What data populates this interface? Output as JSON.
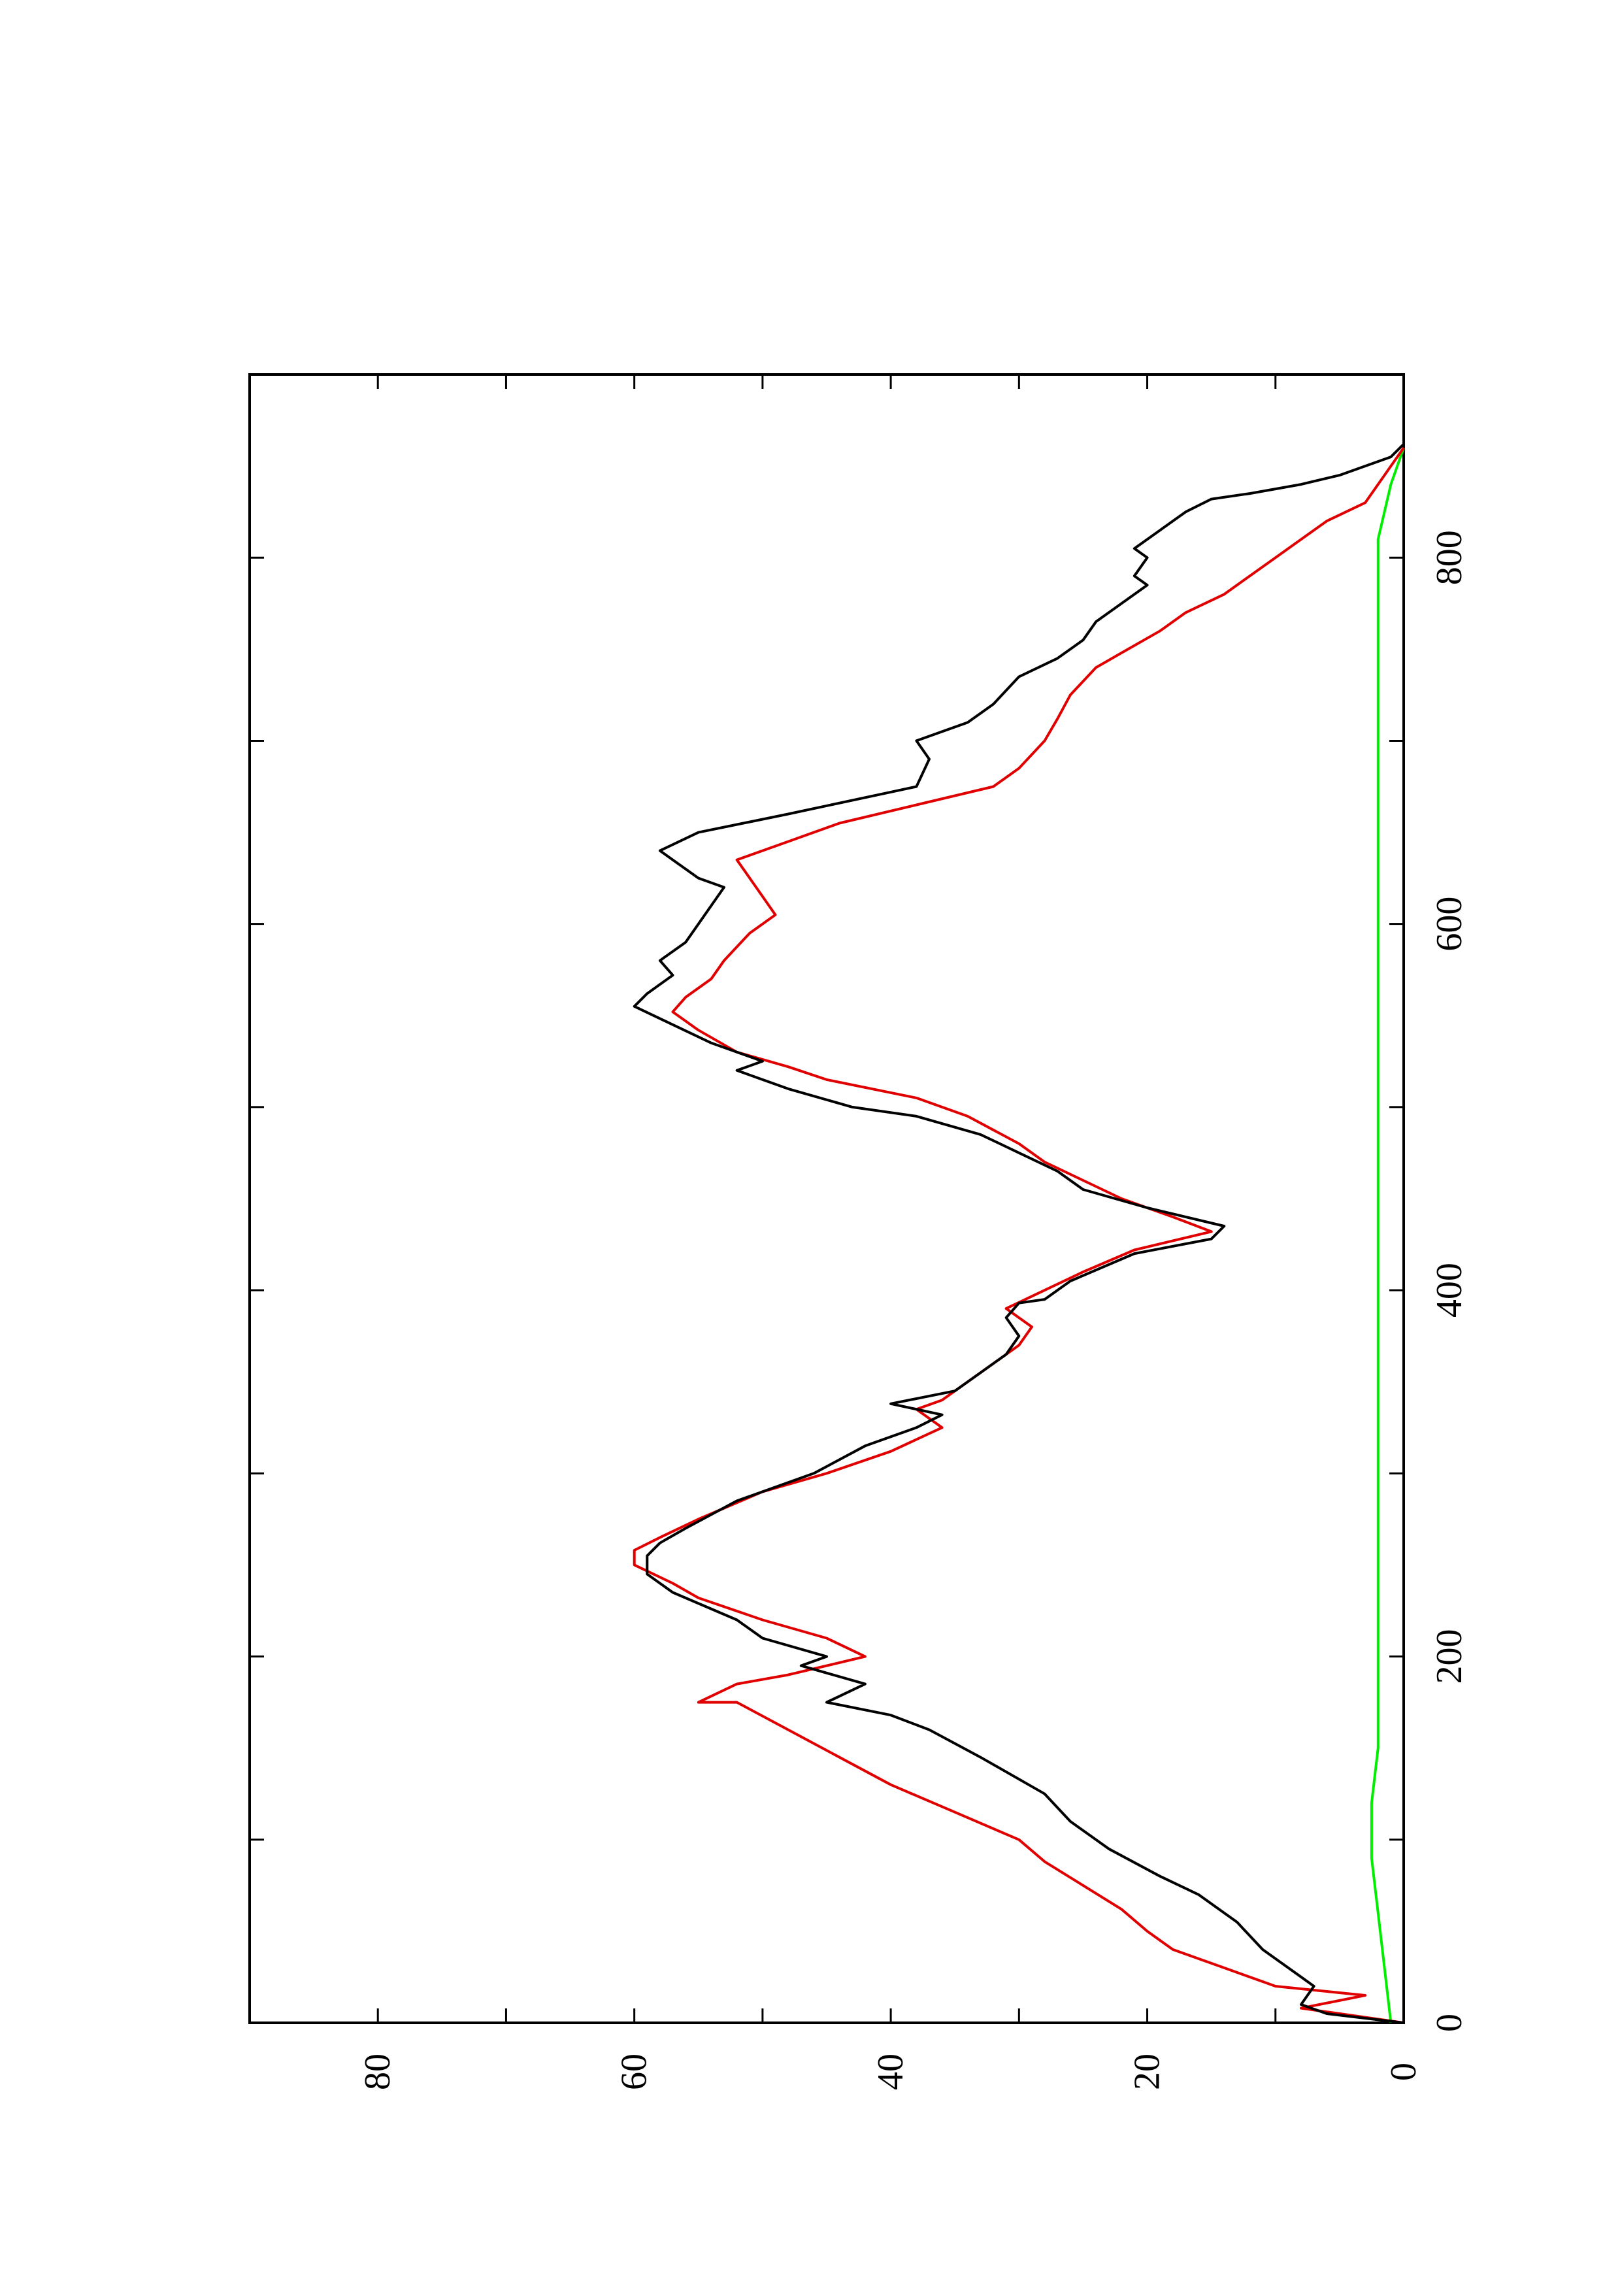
{
  "chart_data": {
    "type": "line",
    "orientation": "rotated 90° counter-clockwise (landscape plot printed on portrait page)",
    "title": "",
    "xlabel": "",
    "ylabel": "",
    "xlim": [
      0,
      900
    ],
    "ylim": [
      0,
      90
    ],
    "x_ticks": [
      0,
      200,
      400,
      600,
      800
    ],
    "x_tick_labels": [
      "0",
      "200",
      "400",
      "600",
      "800"
    ],
    "x_minor_ticks": [
      100,
      300,
      500,
      700
    ],
    "y_ticks": [
      0,
      20,
      40,
      60,
      80
    ],
    "y_tick_labels": [
      "0",
      "20",
      "40",
      "60",
      "80"
    ],
    "y_minor_ticks": [
      10,
      30,
      50,
      70
    ],
    "grid": false,
    "legend": false,
    "colors": {
      "black": "#000000",
      "red": "#e00000",
      "green": "#00ee00",
      "frame": "#000000"
    },
    "series": [
      {
        "color": "#000000",
        "points": [
          [
            0,
            0
          ],
          [
            5,
            6
          ],
          [
            10,
            8
          ],
          [
            20,
            7
          ],
          [
            25,
            8
          ],
          [
            30,
            9
          ],
          [
            40,
            11
          ],
          [
            55,
            13
          ],
          [
            70,
            16
          ],
          [
            80,
            19
          ],
          [
            95,
            23
          ],
          [
            110,
            26
          ],
          [
            125,
            28
          ],
          [
            145,
            33
          ],
          [
            160,
            37
          ],
          [
            168,
            40
          ],
          [
            175,
            45
          ],
          [
            185,
            42
          ],
          [
            195,
            47
          ],
          [
            200,
            45
          ],
          [
            210,
            50
          ],
          [
            220,
            52
          ],
          [
            235,
            57
          ],
          [
            245,
            59
          ],
          [
            255,
            59
          ],
          [
            262,
            58
          ],
          [
            270,
            56
          ],
          [
            285,
            52
          ],
          [
            300,
            46
          ],
          [
            315,
            42
          ],
          [
            325,
            38
          ],
          [
            332,
            36
          ],
          [
            338,
            40
          ],
          [
            345,
            35
          ],
          [
            355,
            33
          ],
          [
            365,
            31
          ],
          [
            375,
            30
          ],
          [
            385,
            31
          ],
          [
            393,
            30
          ],
          [
            395,
            28
          ],
          [
            405,
            26
          ],
          [
            420,
            21
          ],
          [
            428,
            15
          ],
          [
            435,
            14
          ],
          [
            445,
            20
          ],
          [
            455,
            25
          ],
          [
            465,
            27
          ],
          [
            475,
            30
          ],
          [
            485,
            33
          ],
          [
            495,
            38
          ],
          [
            500,
            43
          ],
          [
            510,
            48
          ],
          [
            520,
            52
          ],
          [
            525,
            50
          ],
          [
            535,
            54
          ],
          [
            545,
            57
          ],
          [
            555,
            60
          ],
          [
            562,
            59
          ],
          [
            572,
            57
          ],
          [
            580,
            58
          ],
          [
            590,
            56
          ],
          [
            600,
            55
          ],
          [
            610,
            54
          ],
          [
            620,
            53
          ],
          [
            625,
            55
          ],
          [
            635,
            57
          ],
          [
            640,
            58
          ],
          [
            650,
            55
          ],
          [
            660,
            48
          ],
          [
            672,
            40
          ],
          [
            675,
            38
          ],
          [
            690,
            37
          ],
          [
            700,
            38
          ],
          [
            710,
            34
          ],
          [
            720,
            32
          ],
          [
            735,
            30
          ],
          [
            745,
            27
          ],
          [
            755,
            25
          ],
          [
            765,
            24
          ],
          [
            775,
            22
          ],
          [
            785,
            20
          ],
          [
            790,
            21
          ],
          [
            800,
            20
          ],
          [
            805,
            21
          ],
          [
            815,
            19
          ],
          [
            825,
            17
          ],
          [
            832,
            15
          ],
          [
            835,
            12
          ],
          [
            840,
            8
          ],
          [
            845,
            5
          ],
          [
            850,
            3
          ],
          [
            855,
            1
          ],
          [
            862,
            0
          ]
        ]
      },
      {
        "color": "#e00000",
        "points": [
          [
            0,
            0
          ],
          [
            8,
            8
          ],
          [
            15,
            3
          ],
          [
            20,
            10
          ],
          [
            30,
            14
          ],
          [
            40,
            18
          ],
          [
            50,
            20
          ],
          [
            62,
            22
          ],
          [
            75,
            25
          ],
          [
            88,
            28
          ],
          [
            100,
            30
          ],
          [
            115,
            35
          ],
          [
            130,
            40
          ],
          [
            145,
            44
          ],
          [
            160,
            48
          ],
          [
            175,
            52
          ],
          [
            175,
            55
          ],
          [
            185,
            52
          ],
          [
            190,
            48
          ],
          [
            200,
            42
          ],
          [
            210,
            45
          ],
          [
            220,
            50
          ],
          [
            232,
            55
          ],
          [
            240,
            57
          ],
          [
            250,
            60
          ],
          [
            258,
            60
          ],
          [
            265,
            58
          ],
          [
            275,
            55
          ],
          [
            290,
            50
          ],
          [
            300,
            45
          ],
          [
            312,
            40
          ],
          [
            325,
            36
          ],
          [
            335,
            38
          ],
          [
            340,
            36
          ],
          [
            350,
            34
          ],
          [
            360,
            32
          ],
          [
            370,
            30
          ],
          [
            380,
            29
          ],
          [
            390,
            31
          ],
          [
            400,
            28
          ],
          [
            410,
            25
          ],
          [
            422,
            21
          ],
          [
            432,
            15
          ],
          [
            440,
            18
          ],
          [
            450,
            22
          ],
          [
            460,
            25
          ],
          [
            470,
            28
          ],
          [
            480,
            30
          ],
          [
            495,
            34
          ],
          [
            505,
            38
          ],
          [
            515,
            45
          ],
          [
            522,
            48
          ],
          [
            530,
            52
          ],
          [
            542,
            55
          ],
          [
            552,
            57
          ],
          [
            560,
            56
          ],
          [
            570,
            54
          ],
          [
            580,
            53
          ],
          [
            595,
            51
          ],
          [
            605,
            49
          ],
          [
            615,
            50
          ],
          [
            625,
            51
          ],
          [
            635,
            52
          ],
          [
            645,
            48
          ],
          [
            655,
            44
          ],
          [
            665,
            38
          ],
          [
            675,
            32
          ],
          [
            685,
            30
          ],
          [
            700,
            28
          ],
          [
            712,
            27
          ],
          [
            725,
            26
          ],
          [
            740,
            24
          ],
          [
            748,
            22
          ],
          [
            760,
            19
          ],
          [
            770,
            17
          ],
          [
            780,
            14
          ],
          [
            790,
            12
          ],
          [
            800,
            10
          ],
          [
            810,
            8
          ],
          [
            820,
            6
          ],
          [
            830,
            3
          ],
          [
            840,
            2
          ],
          [
            850,
            1
          ],
          [
            860,
            0
          ]
        ]
      },
      {
        "color": "#00ee00",
        "points": [
          [
            0,
            1
          ],
          [
            30,
            1.5
          ],
          [
            60,
            2
          ],
          [
            90,
            2.5
          ],
          [
            120,
            2.5
          ],
          [
            150,
            2
          ],
          [
            180,
            2
          ],
          [
            210,
            2
          ],
          [
            240,
            2
          ],
          [
            270,
            2
          ],
          [
            300,
            2
          ],
          [
            330,
            2
          ],
          [
            360,
            2
          ],
          [
            390,
            2
          ],
          [
            420,
            2
          ],
          [
            450,
            2
          ],
          [
            480,
            2
          ],
          [
            510,
            2
          ],
          [
            540,
            2
          ],
          [
            570,
            2
          ],
          [
            600,
            2
          ],
          [
            630,
            2
          ],
          [
            660,
            2
          ],
          [
            690,
            2
          ],
          [
            720,
            2
          ],
          [
            750,
            2
          ],
          [
            780,
            2
          ],
          [
            810,
            2
          ],
          [
            840,
            1
          ],
          [
            860,
            0
          ]
        ]
      }
    ]
  }
}
